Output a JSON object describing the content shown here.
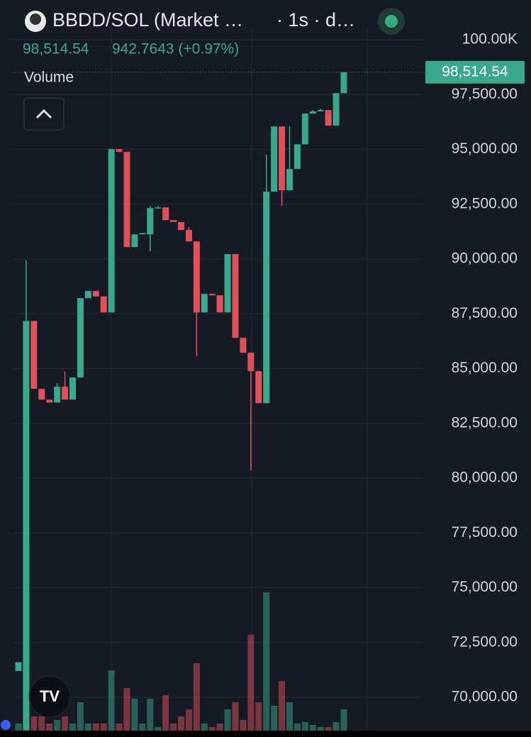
{
  "header": {
    "symbol": "BBDD/SOL (Market …",
    "interval": "· 1s · d…",
    "change": "942.7643 (+0.97%)",
    "volume_label": "Volume"
  },
  "chart_data": {
    "type": "candlestick",
    "up_color": "#3aa88a",
    "down_color": "#e0505a",
    "last_price": {
      "value": 98514.54,
      "label": "98,514.54"
    },
    "ylim": [
      68480,
      100000
    ],
    "yticks": [
      {
        "value": 100000,
        "label": "100.00K"
      },
      {
        "value": 97500,
        "label": "97,500.00"
      },
      {
        "value": 95000,
        "label": "95,000.00"
      },
      {
        "value": 92500,
        "label": "92,500.00"
      },
      {
        "value": 90000,
        "label": "90,000.00"
      },
      {
        "value": 87500,
        "label": "87,500.00"
      },
      {
        "value": 85000,
        "label": "85,000.00"
      },
      {
        "value": 82500,
        "label": "82,500.00"
      },
      {
        "value": 80000,
        "label": "80,000.00"
      },
      {
        "value": 77500,
        "label": "77,500.00"
      },
      {
        "value": 75000,
        "label": "75,000.00"
      },
      {
        "value": 72500,
        "label": "72,500.00"
      },
      {
        "value": 70000,
        "label": "70,000.00"
      }
    ],
    "grid": true,
    "open": [
      71200,
      68500,
      87170,
      84070,
      83580,
      83450,
      84170,
      83580,
      84590,
      88210,
      88540,
      88290,
      87560,
      95010,
      94880,
      90540,
      91120,
      91120,
      92320,
      92350,
      91770,
      91680,
      91320,
      90800,
      87560,
      88410,
      88340,
      87560,
      90220,
      86400,
      85720,
      84880,
      83420,
      93070,
      96040,
      93130,
      94100,
      95230,
      96630,
      96730,
      96790,
      96080,
      97560
    ],
    "high": [
      71600,
      89930,
      87170,
      84070,
      83580,
      84330,
      84850,
      84590,
      88210,
      88540,
      88540,
      88290,
      95010,
      95010,
      94880,
      91120,
      91180,
      92420,
      92420,
      92350,
      91770,
      91680,
      91450,
      90800,
      88410,
      88410,
      88340,
      90220,
      90220,
      86400,
      85720,
      84880,
      94750,
      96040,
      96040,
      96040,
      95230,
      96630,
      96790,
      96850,
      96790,
      97560,
      98514.54
    ],
    "low": [
      71200,
      68500,
      84070,
      83580,
      83450,
      83450,
      83580,
      83580,
      84590,
      88210,
      88290,
      87560,
      87560,
      94880,
      90540,
      90540,
      91120,
      90350,
      92320,
      91770,
      91680,
      91320,
      90800,
      85560,
      87560,
      88340,
      87560,
      87560,
      86400,
      85720,
      80350,
      83420,
      83420,
      93070,
      92420,
      93130,
      94100,
      95230,
      96630,
      96730,
      96080,
      96080,
      97560
    ],
    "close": [
      71600,
      87170,
      84070,
      83580,
      83450,
      84170,
      83580,
      84590,
      88210,
      88540,
      88290,
      87560,
      95010,
      94880,
      90540,
      91120,
      91180,
      92320,
      92350,
      91770,
      91680,
      91320,
      90800,
      87560,
      88410,
      88340,
      87560,
      90220,
      86400,
      85720,
      84880,
      83420,
      93070,
      96040,
      93130,
      94100,
      95230,
      96630,
      96730,
      96790,
      96080,
      97560,
      98514.54
    ],
    "volume": [
      10,
      260,
      20,
      20,
      10,
      15,
      20,
      10,
      40,
      10,
      10,
      10,
      85,
      10,
      60,
      45,
      10,
      45,
      5,
      50,
      10,
      20,
      30,
      95,
      10,
      5,
      10,
      30,
      40,
      15,
      135,
      40,
      195,
      35,
      70,
      40,
      10,
      12,
      8,
      5,
      5,
      12,
      30
    ]
  }
}
